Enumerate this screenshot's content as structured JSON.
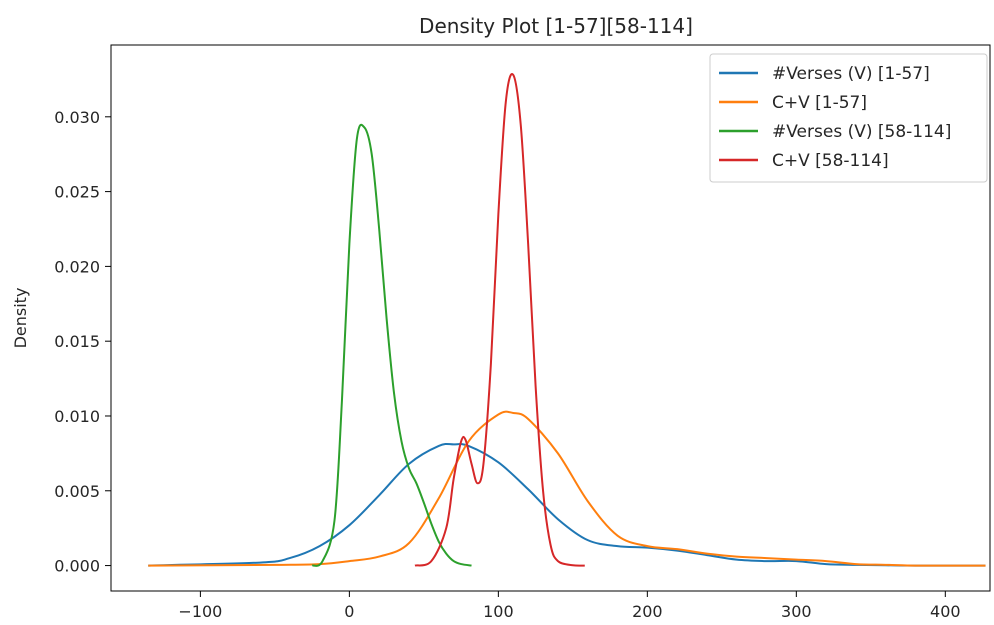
{
  "chart_data": {
    "type": "line",
    "title": "Density Plot [1-57][58-114]",
    "xlabel": "",
    "ylabel": "Density",
    "xlim": [
      -160,
      430
    ],
    "ylim": [
      -0.0017,
      0.0348
    ],
    "xticks": [
      -100,
      0,
      100,
      200,
      300,
      400
    ],
    "xtick_labels": [
      "−100",
      "0",
      "100",
      "200",
      "300",
      "400"
    ],
    "yticks": [
      0.0,
      0.005,
      0.01,
      0.015,
      0.02,
      0.025,
      0.03
    ],
    "ytick_labels": [
      "0.000",
      "0.005",
      "0.010",
      "0.015",
      "0.020",
      "0.025",
      "0.030"
    ],
    "grid": false,
    "legend_position": "top-right",
    "series": [
      {
        "name": "#Verses (V) [1-57]",
        "color": "#1f77b4",
        "x": [
          -135,
          -60,
          -40,
          -20,
          0,
          20,
          40,
          60,
          70,
          80,
          100,
          120,
          140,
          160,
          180,
          200,
          220,
          240,
          260,
          280,
          300,
          320,
          340,
          360,
          380,
          400,
          427
        ],
        "y": [
          0.0,
          0.0002,
          0.0005,
          0.0013,
          0.0027,
          0.0047,
          0.0068,
          0.008,
          0.0081,
          0.008,
          0.0069,
          0.0051,
          0.0031,
          0.0017,
          0.0013,
          0.0012,
          0.001,
          0.0007,
          0.0004,
          0.0003,
          0.0003,
          0.0001,
          5e-05,
          2e-05,
          0.0,
          0.0,
          0.0
        ]
      },
      {
        "name": "C+V [1-57]",
        "color": "#ff7f0e",
        "x": [
          -135,
          -50,
          -20,
          0,
          20,
          40,
          60,
          80,
          100,
          110,
          120,
          140,
          160,
          180,
          200,
          220,
          240,
          260,
          280,
          300,
          320,
          340,
          360,
          380,
          400,
          427
        ],
        "y": [
          0.0,
          5e-05,
          0.0001,
          0.0003,
          0.0006,
          0.0015,
          0.0045,
          0.0083,
          0.0101,
          0.0102,
          0.0098,
          0.0075,
          0.0043,
          0.002,
          0.0013,
          0.0011,
          0.0008,
          0.0006,
          0.0005,
          0.0004,
          0.0003,
          0.0001,
          5e-05,
          0.0,
          0.0,
          0.0
        ]
      },
      {
        "name": "#Verses (V) [58-114]",
        "color": "#2ca02c",
        "x": [
          -25,
          -18,
          -10,
          -5,
          0,
          5,
          10,
          15,
          20,
          25,
          30,
          35,
          40,
          45,
          50,
          55,
          60,
          65,
          70,
          75,
          82
        ],
        "y": [
          0.0,
          0.0003,
          0.003,
          0.011,
          0.0215,
          0.0285,
          0.0293,
          0.0275,
          0.0225,
          0.0165,
          0.0115,
          0.0083,
          0.0065,
          0.0055,
          0.0042,
          0.0028,
          0.0016,
          0.0008,
          0.0003,
          0.0001,
          0.0
        ]
      },
      {
        "name": "C+V [58-114]",
        "color": "#d62728",
        "x": [
          44,
          55,
          65,
          70,
          75,
          78,
          82,
          86,
          90,
          95,
          100,
          105,
          110,
          115,
          120,
          125,
          130,
          135,
          140,
          150,
          158
        ],
        "y": [
          0.0,
          0.0003,
          0.0025,
          0.0058,
          0.0083,
          0.0084,
          0.0068,
          0.0055,
          0.0068,
          0.0135,
          0.0235,
          0.031,
          0.0328,
          0.0295,
          0.0215,
          0.012,
          0.005,
          0.0014,
          0.0003,
          2e-05,
          0.0
        ]
      }
    ]
  }
}
